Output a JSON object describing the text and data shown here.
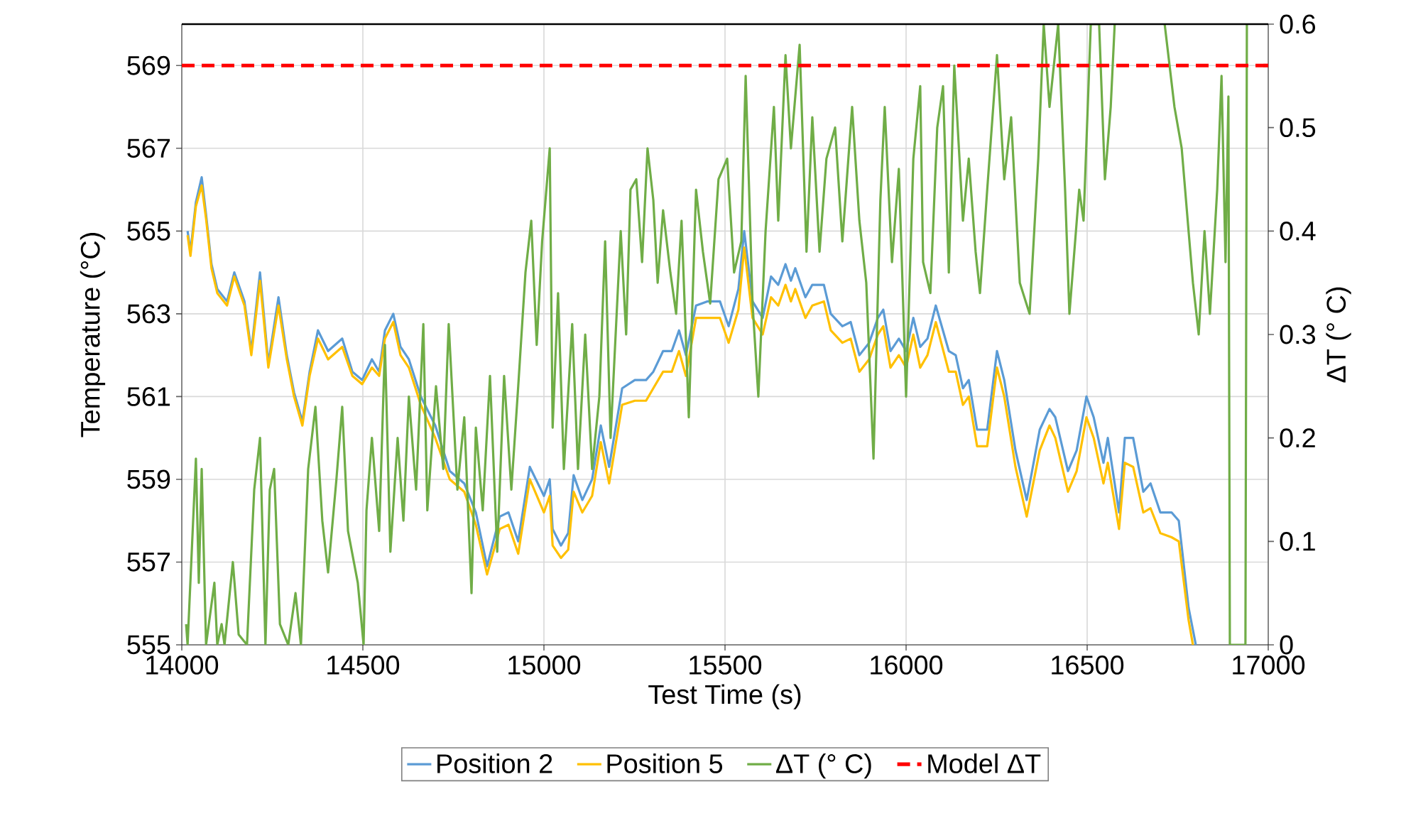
{
  "chart_data": {
    "type": "line",
    "xlabel": "Test Time (s)",
    "ylabel": "Temperature (°C)",
    "y2label": "ΔT (° C)",
    "xlim": [
      14000,
      17000
    ],
    "xticks": [
      14000,
      14500,
      15000,
      15500,
      16000,
      16500,
      17000
    ],
    "ylim": [
      555,
      570
    ],
    "yticks": [
      555,
      557,
      559,
      561,
      563,
      565,
      567,
      569
    ],
    "y2lim": [
      0,
      0.6
    ],
    "y2ticks": [
      0,
      0.1,
      0.2,
      0.3,
      0.4,
      0.5,
      0.6
    ],
    "grid": true,
    "legend": "bottom",
    "marker": "none",
    "series": [
      {
        "name": "Position 2",
        "color": "#5b9bd5",
        "line_style": "solid",
        "x": [
          14016,
          14024,
          14039,
          14055,
          14067,
          14082,
          14098,
          14125,
          14145,
          14173,
          14192,
          14216,
          14239,
          14267,
          14290,
          14310,
          14333,
          14353,
          14376,
          14404,
          14443,
          14471,
          14498,
          14525,
          14545,
          14561,
          14584,
          14604,
          14627,
          14660,
          14700,
          14740,
          14780,
          14812,
          14843,
          14878,
          14902,
          14929,
          14961,
          15000,
          15016,
          15024,
          15047,
          15067,
          15082,
          15106,
          15133,
          15157,
          15180,
          15216,
          15251,
          15282,
          15302,
          15329,
          15353,
          15373,
          15392,
          15420,
          15451,
          15486,
          15510,
          15537,
          15553,
          15576,
          15604,
          15627,
          15647,
          15667,
          15682,
          15694,
          15722,
          15741,
          15773,
          15792,
          15824,
          15847,
          15871,
          15898,
          15922,
          15937,
          15957,
          15980,
          16000,
          16020,
          16039,
          16059,
          16082,
          16118,
          16137,
          16157,
          16173,
          16196,
          16224,
          16251,
          16271,
          16302,
          16333,
          16369,
          16396,
          16412,
          16447,
          16471,
          16498,
          16518,
          16545,
          16557,
          16588,
          16604,
          16627,
          16655,
          16675,
          16702,
          16733,
          16753,
          16780,
          16800
        ],
        "values": [
          565.0,
          564.5,
          565.7,
          566.3,
          565.4,
          564.2,
          563.6,
          563.3,
          564.0,
          563.3,
          562.1,
          564.0,
          561.8,
          563.4,
          562.0,
          561.1,
          560.4,
          561.6,
          562.6,
          562.1,
          562.4,
          561.6,
          561.4,
          561.9,
          561.6,
          562.6,
          563.0,
          562.2,
          561.9,
          561.0,
          560.3,
          559.2,
          558.9,
          558.2,
          556.9,
          558.1,
          558.2,
          557.5,
          559.3,
          558.6,
          559.0,
          557.8,
          557.4,
          557.7,
          559.1,
          558.5,
          559.0,
          560.3,
          559.3,
          561.2,
          561.4,
          561.4,
          561.6,
          562.1,
          562.1,
          562.6,
          562.0,
          563.2,
          563.3,
          563.3,
          562.7,
          563.6,
          565.0,
          563.3,
          562.9,
          563.9,
          563.7,
          564.2,
          563.8,
          564.1,
          563.4,
          563.7,
          563.7,
          563.0,
          562.7,
          562.8,
          562.0,
          562.3,
          562.9,
          563.1,
          562.1,
          562.4,
          562.1,
          562.9,
          562.2,
          562.4,
          563.2,
          562.1,
          562.0,
          561.2,
          561.4,
          560.2,
          560.2,
          562.1,
          561.4,
          559.7,
          558.5,
          560.2,
          560.7,
          560.5,
          559.2,
          559.7,
          561.0,
          560.5,
          559.4,
          560.0,
          558.2,
          560.0,
          560.0,
          558.7,
          558.9,
          558.2,
          558.2,
          558.0,
          555.9,
          555.0
        ]
      },
      {
        "name": "Position 5",
        "color": "#ffc000",
        "line_style": "solid",
        "x": [
          14016,
          14024,
          14039,
          14055,
          14067,
          14082,
          14098,
          14125,
          14145,
          14173,
          14192,
          14216,
          14239,
          14267,
          14290,
          14310,
          14333,
          14353,
          14376,
          14404,
          14443,
          14471,
          14498,
          14525,
          14545,
          14561,
          14584,
          14604,
          14627,
          14660,
          14700,
          14740,
          14780,
          14812,
          14843,
          14878,
          14902,
          14929,
          14961,
          15000,
          15016,
          15024,
          15047,
          15067,
          15082,
          15106,
          15133,
          15157,
          15180,
          15216,
          15251,
          15282,
          15302,
          15329,
          15353,
          15373,
          15392,
          15420,
          15451,
          15486,
          15510,
          15537,
          15553,
          15576,
          15604,
          15627,
          15647,
          15667,
          15682,
          15694,
          15722,
          15741,
          15773,
          15792,
          15824,
          15847,
          15871,
          15898,
          15922,
          15937,
          15957,
          15980,
          16000,
          16020,
          16039,
          16059,
          16082,
          16118,
          16137,
          16157,
          16173,
          16196,
          16224,
          16251,
          16271,
          16302,
          16333,
          16369,
          16396,
          16412,
          16447,
          16471,
          16498,
          16518,
          16545,
          16557,
          16588,
          16604,
          16627,
          16655,
          16675,
          16702,
          16733,
          16753,
          16780,
          16792
        ],
        "values": [
          564.9,
          564.4,
          565.6,
          566.1,
          565.3,
          564.1,
          563.5,
          563.2,
          563.9,
          563.2,
          562.0,
          563.8,
          561.7,
          563.2,
          561.9,
          561.0,
          560.3,
          561.5,
          562.4,
          561.9,
          562.2,
          561.5,
          561.3,
          561.7,
          561.5,
          562.4,
          562.8,
          562.0,
          561.7,
          560.8,
          560.0,
          559.0,
          558.7,
          557.9,
          556.7,
          557.8,
          557.9,
          557.2,
          559.0,
          558.2,
          558.6,
          557.4,
          557.1,
          557.3,
          558.7,
          558.2,
          558.6,
          559.9,
          558.9,
          560.8,
          560.9,
          560.9,
          561.2,
          561.6,
          561.6,
          562.1,
          561.5,
          562.9,
          562.9,
          562.9,
          562.3,
          563.1,
          564.6,
          562.9,
          562.5,
          563.4,
          563.2,
          563.7,
          563.3,
          563.6,
          562.9,
          563.2,
          563.3,
          562.6,
          562.3,
          562.4,
          561.6,
          561.9,
          562.5,
          562.7,
          561.7,
          562.0,
          561.7,
          562.5,
          561.7,
          562.0,
          562.8,
          561.6,
          561.6,
          560.8,
          561.0,
          559.8,
          559.8,
          561.7,
          561.0,
          559.3,
          558.1,
          559.7,
          560.3,
          560.0,
          558.7,
          559.2,
          560.5,
          560.0,
          558.9,
          559.4,
          557.8,
          559.4,
          559.3,
          558.2,
          558.3,
          557.7,
          557.6,
          557.5,
          555.6,
          555.0
        ]
      },
      {
        "name": "ΔT (° C)",
        "color": "#70ad47",
        "line_style": "solid",
        "axis": "y2",
        "x": [
          14012,
          14016,
          14039,
          14047,
          14055,
          14067,
          14090,
          14098,
          14110,
          14118,
          14141,
          14157,
          14180,
          14200,
          14216,
          14231,
          14243,
          14255,
          14271,
          14294,
          14314,
          14329,
          14349,
          14369,
          14388,
          14404,
          14427,
          14443,
          14459,
          14486,
          14502,
          14510,
          14525,
          14545,
          14561,
          14576,
          14596,
          14612,
          14627,
          14647,
          14667,
          14678,
          14702,
          14722,
          14737,
          14761,
          14780,
          14800,
          14812,
          14831,
          14851,
          14871,
          14890,
          14910,
          14929,
          14949,
          14965,
          14980,
          14995,
          15016,
          15024,
          15039,
          15055,
          15078,
          15094,
          15114,
          15133,
          15153,
          15169,
          15184,
          15212,
          15227,
          15239,
          15255,
          15271,
          15286,
          15302,
          15314,
          15329,
          15349,
          15365,
          15380,
          15400,
          15420,
          15439,
          15459,
          15482,
          15506,
          15525,
          15545,
          15557,
          15576,
          15592,
          15612,
          15635,
          15647,
          15667,
          15682,
          15706,
          15725,
          15741,
          15761,
          15780,
          15804,
          15824,
          15851,
          15871,
          15890,
          15910,
          15929,
          15941,
          15961,
          15980,
          16000,
          16020,
          16039,
          16047,
          16067,
          16086,
          16102,
          16118,
          16133,
          16157,
          16173,
          16192,
          16204,
          16224,
          16251,
          16271,
          16290,
          16314,
          16341,
          16365,
          16380,
          16396,
          16420,
          16439,
          16451,
          16478,
          16490,
          16510,
          16533,
          16549,
          16565,
          16576,
          16640,
          16714,
          16741,
          16761,
          16780,
          16792,
          16808,
          16824,
          16839,
          16859,
          16871,
          16882,
          16890,
          16894,
          16937,
          16941
        ],
        "values": [
          0.02,
          0,
          0.18,
          0.06,
          0.17,
          0,
          0.06,
          0,
          0.02,
          0,
          0.08,
          0.01,
          0,
          0.15,
          0.2,
          0,
          0.15,
          0.17,
          0.02,
          0,
          0.05,
          0,
          0.17,
          0.23,
          0.12,
          0.07,
          0.16,
          0.23,
          0.11,
          0.06,
          0,
          0.13,
          0.2,
          0.11,
          0.29,
          0.09,
          0.2,
          0.12,
          0.24,
          0.15,
          0.31,
          0.13,
          0.25,
          0.17,
          0.31,
          0.15,
          0.22,
          0.05,
          0.21,
          0.13,
          0.26,
          0.09,
          0.26,
          0.15,
          0.25,
          0.36,
          0.41,
          0.29,
          0.39,
          0.48,
          0.21,
          0.34,
          0.17,
          0.31,
          0.17,
          0.3,
          0.17,
          0.24,
          0.39,
          0.2,
          0.4,
          0.3,
          0.44,
          0.45,
          0.37,
          0.48,
          0.43,
          0.35,
          0.42,
          0.36,
          0.32,
          0.41,
          0.22,
          0.44,
          0.38,
          0.33,
          0.45,
          0.47,
          0.36,
          0.39,
          0.55,
          0.33,
          0.24,
          0.4,
          0.52,
          0.41,
          0.57,
          0.48,
          0.58,
          0.38,
          0.51,
          0.38,
          0.47,
          0.5,
          0.39,
          0.52,
          0.41,
          0.35,
          0.18,
          0.43,
          0.52,
          0.37,
          0.46,
          0.24,
          0.47,
          0.54,
          0.37,
          0.34,
          0.5,
          0.54,
          0.36,
          0.56,
          0.41,
          0.47,
          0.38,
          0.34,
          0.44,
          0.57,
          0.45,
          0.51,
          0.35,
          0.32,
          0.47,
          0.6,
          0.52,
          0.6,
          0.44,
          0.32,
          0.44,
          0.41,
          0.6,
          0.6,
          0.45,
          0.52,
          0.6,
          null,
          0.6,
          0.52,
          0.48,
          0.4,
          0.35,
          0.3,
          0.4,
          0.32,
          0.44,
          0.55,
          0.37,
          0.53,
          0,
          0,
          0.6
        ]
      },
      {
        "name": "Model ΔT",
        "color": "#ff0000",
        "line_style": "dashed",
        "axis": "y2",
        "x": [
          14000,
          17000
        ],
        "values": [
          0.56,
          0.56
        ]
      }
    ]
  }
}
